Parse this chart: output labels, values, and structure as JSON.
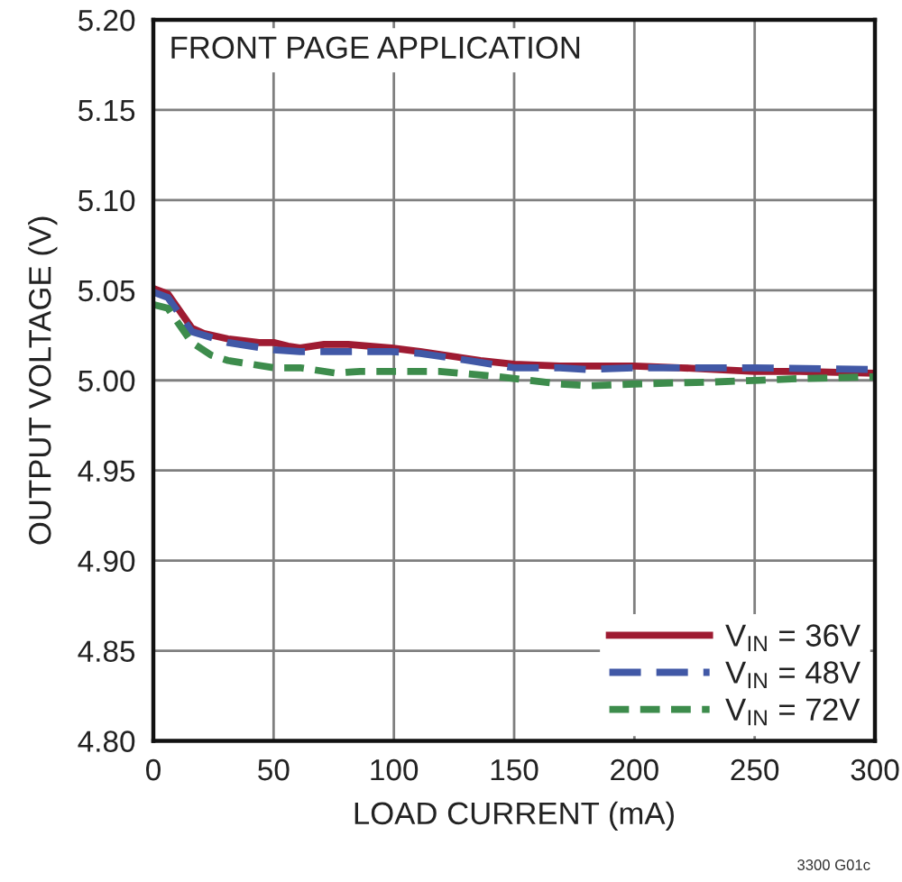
{
  "chart_data": {
    "type": "line",
    "title": "FRONT PAGE APPLICATION",
    "xlabel": "LOAD CURRENT (mA)",
    "ylabel": "OUTPUT VOLTAGE (V)",
    "xlim": [
      0,
      300
    ],
    "xticks": [
      0,
      50,
      100,
      150,
      200,
      250,
      300
    ],
    "ylim": [
      4.8,
      5.2
    ],
    "yticks": [
      {
        "value": 4.8,
        "label": "4.80"
      },
      4.85,
      {
        "value": 4.9,
        "label": "4.90"
      },
      4.95,
      {
        "value": 5.0,
        "label": "5.00"
      },
      5.05,
      {
        "value": 5.1,
        "label": "5.10"
      },
      5.15,
      {
        "value": 5.2,
        "label": "5.20"
      }
    ],
    "grid": true,
    "legend": "bottom right",
    "series": [
      {
        "name": "V$_{IN}$ = 36V",
        "color": "#9e1b32",
        "line_style": "solid",
        "x": [
          0,
          6,
          16,
          21,
          31,
          44,
          50,
          56,
          61,
          71,
          81,
          99,
          111,
          126,
          136,
          150,
          169,
          200,
          219,
          250,
          269,
          300
        ],
        "values": [
          5.051,
          5.048,
          5.029,
          5.026,
          5.023,
          5.021,
          5.021,
          5.019,
          5.018,
          5.02,
          5.02,
          5.018,
          5.016,
          5.013,
          5.011,
          5.009,
          5.008,
          5.008,
          5.007,
          5.005,
          5.005,
          5.004
        ]
      },
      {
        "name": "V$_{IN}$ = 48V",
        "color": "#4158a6",
        "line_style": "dashed",
        "x": [
          0,
          6,
          16,
          31,
          50,
          61,
          81,
          99,
          111,
          131,
          150,
          169,
          181,
          200,
          219,
          250,
          300
        ],
        "values": [
          5.049,
          5.046,
          5.027,
          5.021,
          5.017,
          5.016,
          5.016,
          5.016,
          5.015,
          5.011,
          5.007,
          5.007,
          5.006,
          5.007,
          5.007,
          5.007,
          5.006
        ]
      },
      {
        "name": "V$_{IN}$ = 72V",
        "color": "#3d8c4c",
        "line_style": "dashed",
        "x": [
          0,
          6,
          16,
          24,
          31,
          50,
          61,
          76,
          86,
          100,
          119,
          144,
          169,
          181,
          200,
          231,
          250,
          269,
          300
        ],
        "values": [
          5.042,
          5.04,
          5.021,
          5.014,
          5.011,
          5.007,
          5.007,
          5.004,
          5.005,
          5.005,
          5.005,
          5.002,
          4.998,
          4.997,
          4.998,
          4.999,
          5.0,
          5.001,
          5.002
        ]
      }
    ],
    "annotations": [
      "3300 G01c"
    ]
  }
}
